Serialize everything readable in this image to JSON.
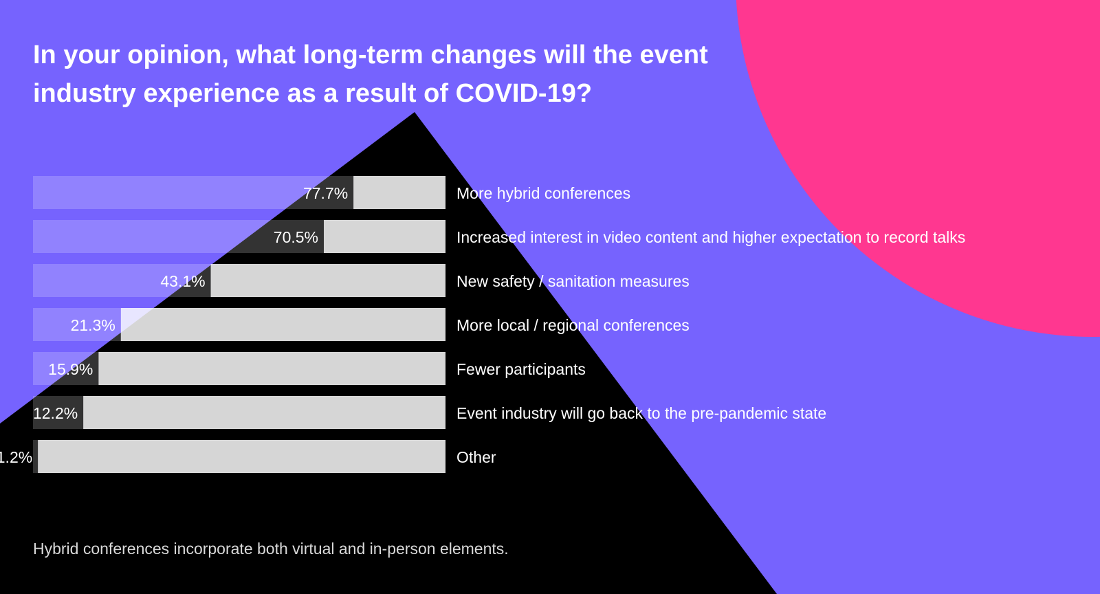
{
  "colors": {
    "background": "#7663fe",
    "pink": "#ff3790",
    "black": "#000000",
    "bar_fill_on_purple": "rgba(255,255,255,0.2)",
    "bar_fill_on_black": "#333333",
    "bar_remainder_on_purple": "#e8e6ff",
    "bar_remainder_on_black": "#d6d6d6"
  },
  "chart_data": {
    "type": "bar",
    "orientation": "horizontal",
    "title": "In your opinion, what long-term changes will the event industry experience as a result of COVID-19?",
    "categories": [
      "More hybrid conferences",
      "Increased interest in video content and higher expectation to record talks",
      "New safety / sanitation measures",
      "More local / regional conferences",
      "Fewer participants",
      "Event industry will go back to the pre-pandemic state",
      "Other"
    ],
    "values": [
      77.7,
      70.5,
      43.1,
      21.3,
      15.9,
      12.2,
      1.2
    ],
    "value_labels": [
      "77.7%",
      "70.5%",
      "43.1%",
      "21.3%",
      "15.9%",
      "12.2%",
      "1.2%"
    ],
    "xlim": [
      0,
      100
    ],
    "grid": false,
    "legend": "none"
  },
  "footnote": "Hybrid conferences incorporate both virtual and in-person elements."
}
